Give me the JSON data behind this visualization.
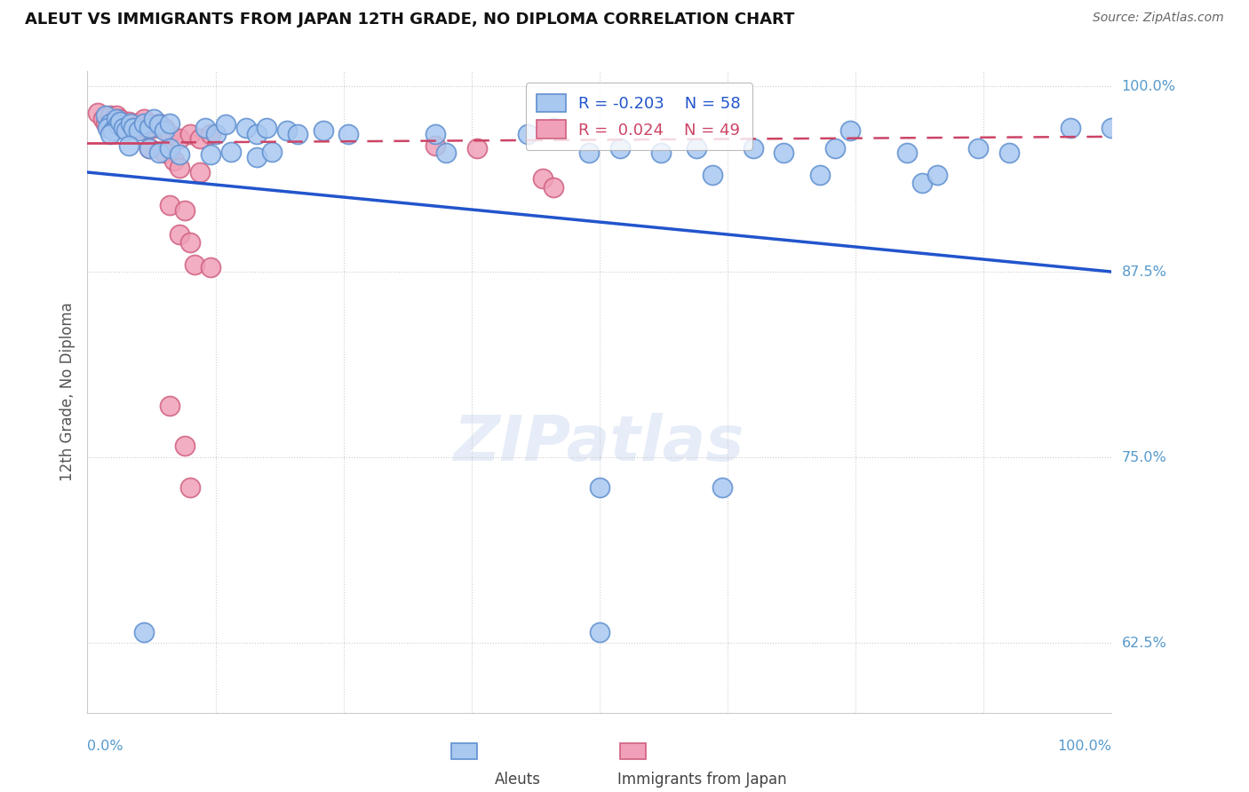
{
  "title": "ALEUT VS IMMIGRANTS FROM JAPAN 12TH GRADE, NO DIPLOMA CORRELATION CHART",
  "source": "Source: ZipAtlas.com",
  "ylabel": "12th Grade, No Diploma",
  "watermark": "ZIPatlas",
  "legend_blue_r": "-0.203",
  "legend_blue_n": "58",
  "legend_pink_r": "0.024",
  "legend_pink_n": "49",
  "blue_scatter_color": "#a8c8f0",
  "blue_edge_color": "#6090d0",
  "pink_scatter_color": "#f0a0b8",
  "pink_edge_color": "#d06080",
  "blue_line_color": "#2255cc",
  "pink_line_color": "#cc4466",
  "background_color": "#ffffff",
  "grid_color": "#cccccc",
  "right_label_color": "#5599cc",
  "blue_scatter": [
    [
      0.018,
      0.98
    ],
    [
      0.022,
      0.975
    ],
    [
      0.02,
      0.972
    ],
    [
      0.025,
      0.97
    ],
    [
      0.028,
      0.978
    ],
    [
      0.03,
      0.974
    ],
    [
      0.022,
      0.968
    ],
    [
      0.032,
      0.976
    ],
    [
      0.035,
      0.972
    ],
    [
      0.038,
      0.97
    ],
    [
      0.042,
      0.975
    ],
    [
      0.045,
      0.972
    ],
    [
      0.05,
      0.97
    ],
    [
      0.055,
      0.975
    ],
    [
      0.06,
      0.972
    ],
    [
      0.065,
      0.978
    ],
    [
      0.07,
      0.974
    ],
    [
      0.075,
      0.97
    ],
    [
      0.08,
      0.975
    ],
    [
      0.115,
      0.972
    ],
    [
      0.125,
      0.968
    ],
    [
      0.135,
      0.974
    ],
    [
      0.155,
      0.972
    ],
    [
      0.165,
      0.968
    ],
    [
      0.175,
      0.972
    ],
    [
      0.195,
      0.97
    ],
    [
      0.205,
      0.968
    ],
    [
      0.23,
      0.97
    ],
    [
      0.255,
      0.968
    ],
    [
      0.34,
      0.968
    ],
    [
      0.04,
      0.96
    ],
    [
      0.06,
      0.958
    ],
    [
      0.07,
      0.955
    ],
    [
      0.08,
      0.958
    ],
    [
      0.09,
      0.954
    ],
    [
      0.12,
      0.954
    ],
    [
      0.14,
      0.956
    ],
    [
      0.165,
      0.952
    ],
    [
      0.18,
      0.956
    ],
    [
      0.35,
      0.955
    ],
    [
      0.43,
      0.968
    ],
    [
      0.455,
      0.972
    ],
    [
      0.49,
      0.955
    ],
    [
      0.52,
      0.958
    ],
    [
      0.56,
      0.955
    ],
    [
      0.595,
      0.958
    ],
    [
      0.61,
      0.94
    ],
    [
      0.65,
      0.958
    ],
    [
      0.68,
      0.955
    ],
    [
      0.715,
      0.94
    ],
    [
      0.73,
      0.958
    ],
    [
      0.745,
      0.97
    ],
    [
      0.8,
      0.955
    ],
    [
      0.815,
      0.935
    ],
    [
      0.83,
      0.94
    ],
    [
      0.87,
      0.958
    ],
    [
      0.9,
      0.955
    ],
    [
      0.96,
      0.972
    ],
    [
      1.0,
      0.972
    ],
    [
      0.5,
      0.73
    ],
    [
      0.62,
      0.73
    ],
    [
      0.055,
      0.632
    ],
    [
      0.5,
      0.632
    ]
  ],
  "pink_scatter": [
    [
      0.01,
      0.982
    ],
    [
      0.015,
      0.978
    ],
    [
      0.018,
      0.975
    ],
    [
      0.022,
      0.98
    ],
    [
      0.025,
      0.976
    ],
    [
      0.028,
      0.98
    ],
    [
      0.03,
      0.975
    ],
    [
      0.032,
      0.978
    ],
    [
      0.035,
      0.975
    ],
    [
      0.038,
      0.972
    ],
    [
      0.04,
      0.976
    ],
    [
      0.042,
      0.972
    ],
    [
      0.045,
      0.975
    ],
    [
      0.048,
      0.972
    ],
    [
      0.05,
      0.975
    ],
    [
      0.052,
      0.972
    ],
    [
      0.055,
      0.978
    ],
    [
      0.058,
      0.972
    ],
    [
      0.06,
      0.975
    ],
    [
      0.065,
      0.972
    ],
    [
      0.07,
      0.975
    ],
    [
      0.075,
      0.972
    ],
    [
      0.08,
      0.968
    ],
    [
      0.09,
      0.965
    ],
    [
      0.1,
      0.968
    ],
    [
      0.11,
      0.965
    ],
    [
      0.12,
      0.968
    ],
    [
      0.06,
      0.958
    ],
    [
      0.075,
      0.955
    ],
    [
      0.085,
      0.95
    ],
    [
      0.09,
      0.945
    ],
    [
      0.11,
      0.942
    ],
    [
      0.08,
      0.92
    ],
    [
      0.095,
      0.916
    ],
    [
      0.09,
      0.9
    ],
    [
      0.1,
      0.895
    ],
    [
      0.105,
      0.88
    ],
    [
      0.12,
      0.878
    ],
    [
      0.34,
      0.96
    ],
    [
      0.38,
      0.958
    ],
    [
      0.445,
      0.938
    ],
    [
      0.455,
      0.932
    ],
    [
      0.08,
      0.785
    ],
    [
      0.095,
      0.758
    ],
    [
      0.1,
      0.73
    ]
  ],
  "xlim": [
    0.0,
    1.0
  ],
  "ylim": [
    0.578,
    1.01
  ],
  "ytick_vals": [
    0.625,
    0.75,
    0.875,
    1.0
  ],
  "ytick_labels": [
    "62.5%",
    "75.0%",
    "87.5%",
    "100.0%"
  ],
  "xtick_vals": [
    0.0,
    0.125,
    0.25,
    0.375,
    0.5,
    0.625,
    0.75,
    0.875,
    1.0
  ],
  "xtick_labels": [
    "0.0%",
    "",
    "",
    "",
    "",
    "",
    "",
    "",
    "100.0%"
  ],
  "blue_line": [
    [
      0.0,
      0.942
    ],
    [
      1.0,
      0.875
    ]
  ],
  "pink_line_solid": [
    [
      0.0,
      0.962
    ],
    [
      0.065,
      0.962
    ]
  ],
  "pink_line_dash": [
    [
      0.065,
      0.962
    ],
    [
      1.0,
      0.966
    ]
  ]
}
